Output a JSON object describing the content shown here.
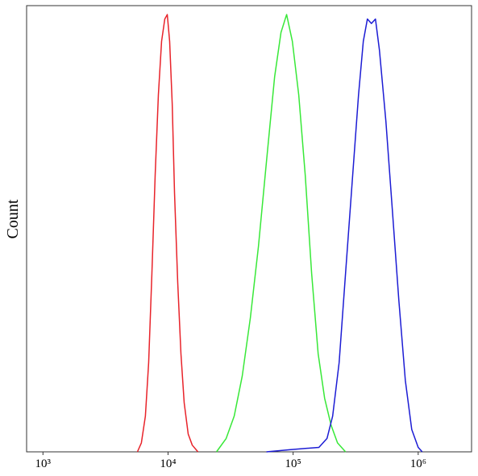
{
  "chart_data": {
    "type": "line",
    "y_label": "Count",
    "x_log": true,
    "xlim": [
      740,
      2670000
    ],
    "ylim": [
      0,
      100
    ],
    "xticks": [
      {
        "value": 1000,
        "label": "10³"
      },
      {
        "value": 10000,
        "label": "10⁴"
      },
      {
        "value": 100000,
        "label": "10⁵"
      },
      {
        "value": 1000000,
        "label": "10⁶"
      }
    ],
    "series": [
      {
        "color": "#e8232a",
        "x": [
          5690,
          6120,
          6590,
          7000,
          7430,
          7890,
          8370,
          8880,
          9420,
          9860,
          10300,
          10800,
          11270,
          11950,
          12680,
          13460,
          14490,
          15620,
          17340
        ],
        "values": [
          0,
          2,
          8,
          20,
          40,
          62,
          80,
          92,
          97,
          98,
          92,
          78,
          58,
          38,
          22,
          11,
          4,
          1.5,
          0
        ]
      },
      {
        "color": "#38e838",
        "x": [
          24400,
          29150,
          33800,
          39200,
          45500,
          52800,
          61200,
          71100,
          80000,
          88700,
          98600,
          110900,
          125000,
          140600,
          158500,
          178600,
          201000,
          226400,
          262500
        ],
        "values": [
          0,
          3,
          8,
          17,
          30,
          46,
          65,
          84,
          94,
          98,
          92,
          80,
          62,
          40,
          22,
          12,
          6,
          2,
          0
        ]
      },
      {
        "color": "#1c1cd4",
        "x": [
          61200,
          95700,
          160700,
          186600,
          207000,
          233300,
          262500,
          295800,
          333400,
          364000,
          392400,
          422600,
          455200,
          490000,
          552000,
          622000,
          700000,
          789000,
          888000,
          1000000,
          1077000
        ],
        "values": [
          0,
          0.5,
          1,
          3,
          8,
          20,
          40,
          60,
          80,
          92,
          97,
          96,
          97,
          90,
          74,
          54,
          34,
          16,
          5,
          1,
          0
        ]
      }
    ]
  }
}
